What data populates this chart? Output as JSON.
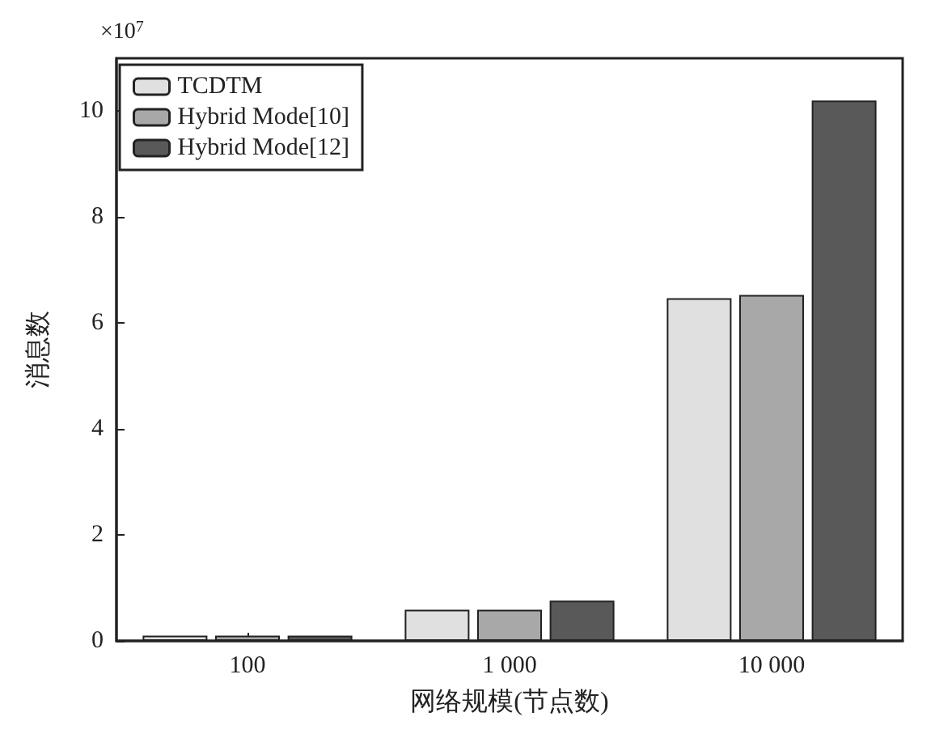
{
  "chart_data": {
    "type": "bar",
    "xlabel": "网络规模(节点数)",
    "ylabel": "消息数",
    "categories": [
      "100",
      "1 000",
      "10 000"
    ],
    "series": [
      {
        "name": "TCDTM",
        "color": "#e0e0e0",
        "values": [
          0.1,
          0.59,
          6.47
        ]
      },
      {
        "name": "Hybrid Mode[10]",
        "color": "#a8a8a8",
        "values": [
          0.1,
          0.59,
          6.53
        ]
      },
      {
        "name": "Hybrid Mode[12]",
        "color": "#595959",
        "values": [
          0.1,
          0.76,
          10.2
        ]
      }
    ],
    "ylim": [
      0,
      11
    ],
    "yticks": [
      0,
      2,
      4,
      6,
      8,
      10
    ],
    "grid": false,
    "legend": "top left",
    "annotations": [
      "×10$^{7}$"
    ]
  }
}
